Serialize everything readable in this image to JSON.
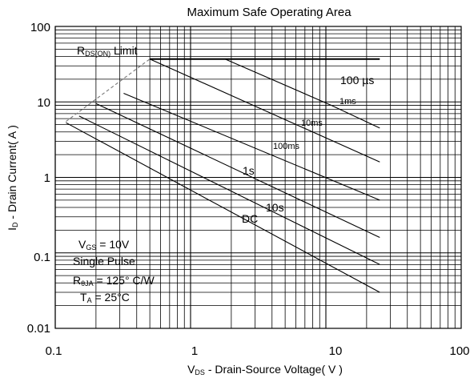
{
  "chart_data": {
    "type": "line",
    "title": "Maximum Safe Operating Area",
    "xlabel": "V  - Drain-Source Voltage( V )",
    "xlabel_main": "V",
    "xlabel_sub": "DS",
    "xlabel_rest": " - Drain-Source Voltage( V )",
    "ylabel_main": "I",
    "ylabel_sub": "D",
    "ylabel_rest": " - Drain Current( A )",
    "x_scale": "log",
    "y_scale": "log",
    "xlim": [
      0.1,
      100
    ],
    "ylim": [
      0.01,
      100
    ],
    "grid": true,
    "x_ticks": [
      {
        "value": 0.1,
        "label": "0.1"
      },
      {
        "value": 1,
        "label": "1"
      },
      {
        "value": 10,
        "label": "10"
      },
      {
        "value": 100,
        "label": "100"
      }
    ],
    "y_ticks": [
      {
        "value": 100,
        "label": "100"
      },
      {
        "value": 10,
        "label": "10"
      },
      {
        "value": 1,
        "label": "1"
      },
      {
        "value": 0.1,
        "label": "0.1"
      },
      {
        "value": 0.01,
        "label": "0.01"
      }
    ],
    "series": [
      {
        "name": "RDS(ON) Limit",
        "dashed": true,
        "points": [
          [
            0.12,
            5.5
          ],
          [
            0.5,
            37
          ]
        ]
      },
      {
        "name": "100µs",
        "points": [
          [
            0.5,
            37
          ],
          [
            25,
            37
          ]
        ]
      },
      {
        "name": "1ms",
        "points": [
          [
            1.8,
            37
          ],
          [
            11,
            9
          ],
          [
            25,
            4.5
          ]
        ]
      },
      {
        "name": "10ms",
        "points": [
          [
            0.5,
            37
          ],
          [
            25,
            1.6
          ]
        ]
      },
      {
        "name": "100ms",
        "points": [
          [
            0.32,
            13
          ],
          [
            25,
            0.5
          ]
        ]
      },
      {
        "name": "1s",
        "points": [
          [
            0.2,
            9.5
          ],
          [
            25,
            0.16
          ]
        ]
      },
      {
        "name": "10s",
        "points": [
          [
            0.15,
            6.5
          ],
          [
            25,
            0.07
          ]
        ]
      },
      {
        "name": "DC",
        "points": [
          [
            0.12,
            5.3
          ],
          [
            25,
            0.03
          ]
        ]
      }
    ],
    "annotations": {
      "rds_main": "R",
      "rds_sub": "DS(ON)",
      "rds_rest": " Limit",
      "t100us": "100 µs",
      "t1ms": "1ms",
      "t10ms": "10ms",
      "t100ms": "100ms",
      "t1s": "1s",
      "t10s": "10s",
      "tdc": "DC",
      "vgs_main": "V",
      "vgs_sub": "GS",
      "vgs_rest": " = 10V",
      "pulse": "Single Pulse",
      "rth_main": "R",
      "rth_sub": "θJA",
      "rth_rest": " = 125° C/W",
      "ta_main": "T",
      "ta_sub": "A",
      "ta_rest": " = 25°C"
    }
  }
}
